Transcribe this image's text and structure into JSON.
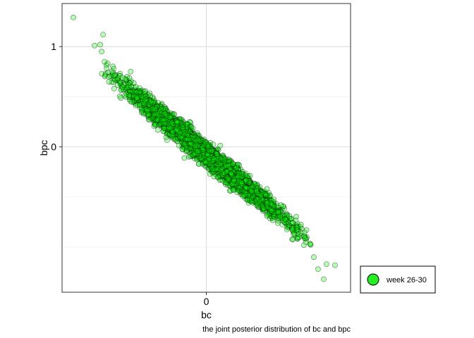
{
  "chart_data": {
    "type": "scatter",
    "xlabel": "bc",
    "ylabel": "bpc",
    "caption": "the joint posterior distribution of bc and bpc",
    "xlim": [
      -1.02,
      1.02
    ],
    "ylim": [
      -1.45,
      1.43
    ],
    "x_ticks": [
      {
        "value": 0,
        "label": "0"
      }
    ],
    "y_ticks": [
      {
        "value": 0,
        "label": "0"
      },
      {
        "value": 1,
        "label": "1"
      }
    ],
    "y_minor": [
      -1,
      -0.5,
      0.5
    ],
    "grid": true,
    "legend_position": "right-bottom",
    "point_fill": "#00ff00",
    "point_opacity": 0.3,
    "point_stroke": "#000000",
    "n_points": 4000,
    "correlation": -0.985,
    "series": [
      {
        "name": "week 26-30",
        "color": "#22ee22",
        "outliers": [
          [
            -0.94,
            1.29
          ],
          [
            -0.73,
            1.12
          ],
          [
            -0.79,
            1.01
          ],
          [
            -0.75,
            1.02
          ],
          [
            -0.74,
            0.95
          ],
          [
            -0.72,
            0.85
          ],
          [
            0.76,
            -1.1
          ],
          [
            0.79,
            -1.22
          ],
          [
            0.85,
            -1.17
          ],
          [
            0.91,
            -1.18
          ],
          [
            0.83,
            -1.32
          ],
          [
            0.69,
            -0.98
          ]
        ]
      }
    ]
  }
}
